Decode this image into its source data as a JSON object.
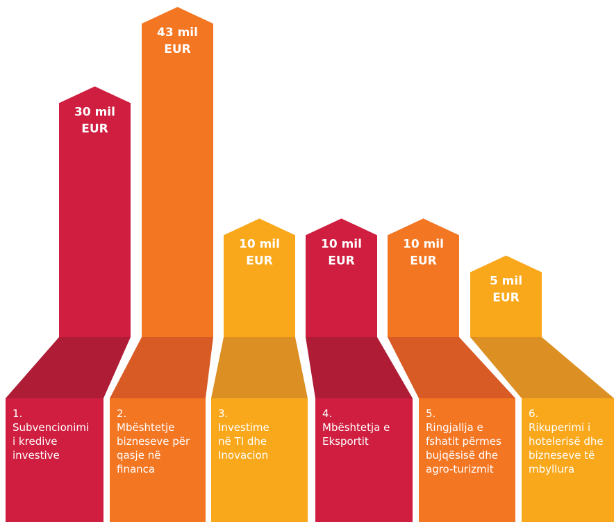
{
  "chart_data": {
    "type": "bar",
    "title": "",
    "xlabel": "",
    "ylabel": "",
    "ylim": [
      0,
      43
    ],
    "unit": "mil EUR",
    "grid": false,
    "legend": "none",
    "categories": [
      {
        "number": "1.",
        "label": "Subvencionimi i kredive investive"
      },
      {
        "number": "2.",
        "label": "Mbështetje bizneseve për qasje në financa"
      },
      {
        "number": "3.",
        "label": "Investime në TI dhe Inovacion"
      },
      {
        "number": "4.",
        "label": "Mbështetja e Eksportit"
      },
      {
        "number": "5.",
        "label": "Ringjallja e fshatit përmes bujqësisë dhe agro-turizmit"
      },
      {
        "number": "6.",
        "label": "Rikuperimi i hotelerisë dhe bizneseve të mbyllura"
      }
    ],
    "values": [
      30,
      43,
      10,
      10,
      10,
      5
    ],
    "value_labels": [
      [
        "30 mil",
        "EUR"
      ],
      [
        "43 mil",
        "EUR"
      ],
      [
        "10 mil",
        "EUR"
      ],
      [
        "10 mil",
        "EUR"
      ],
      [
        "10 mil",
        "EUR"
      ],
      [
        "5 mil",
        "EUR"
      ]
    ],
    "label_lines": [
      [
        "Subvencionimi",
        "i kredive",
        "investive"
      ],
      [
        "Mbështetje",
        "bizneseve për",
        "qasje në",
        "financa"
      ],
      [
        "Investime",
        "në TI dhe",
        "Inovacion"
      ],
      [
        "Mbështetja e",
        "Eksportit"
      ],
      [
        "Ringjallja e",
        "fshatit përmes",
        "bujqësisë dhe",
        "agro-turizmit"
      ],
      [
        "Rikuperimi i",
        "hotelerisë dhe",
        "bizneseve të",
        "mbyllura"
      ]
    ],
    "colors": {
      "bar": [
        "#CF1E3F",
        "#F37623",
        "#F9A81C",
        "#CF1E3F",
        "#F37623",
        "#F9A81C"
      ],
      "connector": [
        "#AE1C36",
        "#D85A25",
        "#DC8F22",
        "#AE1C36",
        "#D85A25",
        "#DC8F22"
      ]
    }
  }
}
